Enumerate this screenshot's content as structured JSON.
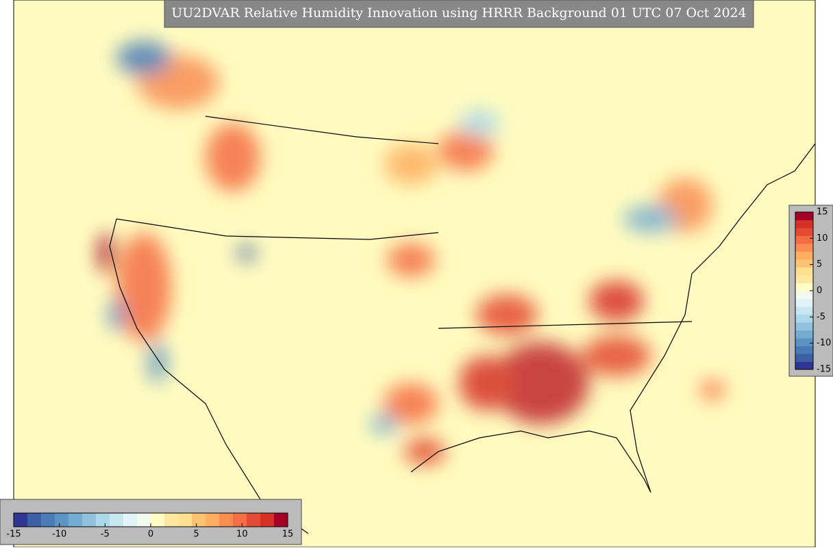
{
  "title": "UU2DVAR Relative Humidity Innovation using HRRR Background 01 UTC 07 Oct 2024",
  "colorbar": {
    "lim": [
      -15,
      15
    ],
    "ticks": [
      -15,
      -10,
      -5,
      0,
      5,
      10,
      15
    ],
    "colors": [
      "#313695",
      "#3d5fa3",
      "#4a7bb7",
      "#5b93c4",
      "#74add1",
      "#91c1dc",
      "#abd9e9",
      "#c8e6f0",
      "#e0f3f8",
      "#f2f9ef",
      "#fffbc4",
      "#fee8a0",
      "#fee090",
      "#fdc374",
      "#fdae61",
      "#f88d52",
      "#f46d43",
      "#e34a33",
      "#d73027",
      "#a50026"
    ]
  }
}
